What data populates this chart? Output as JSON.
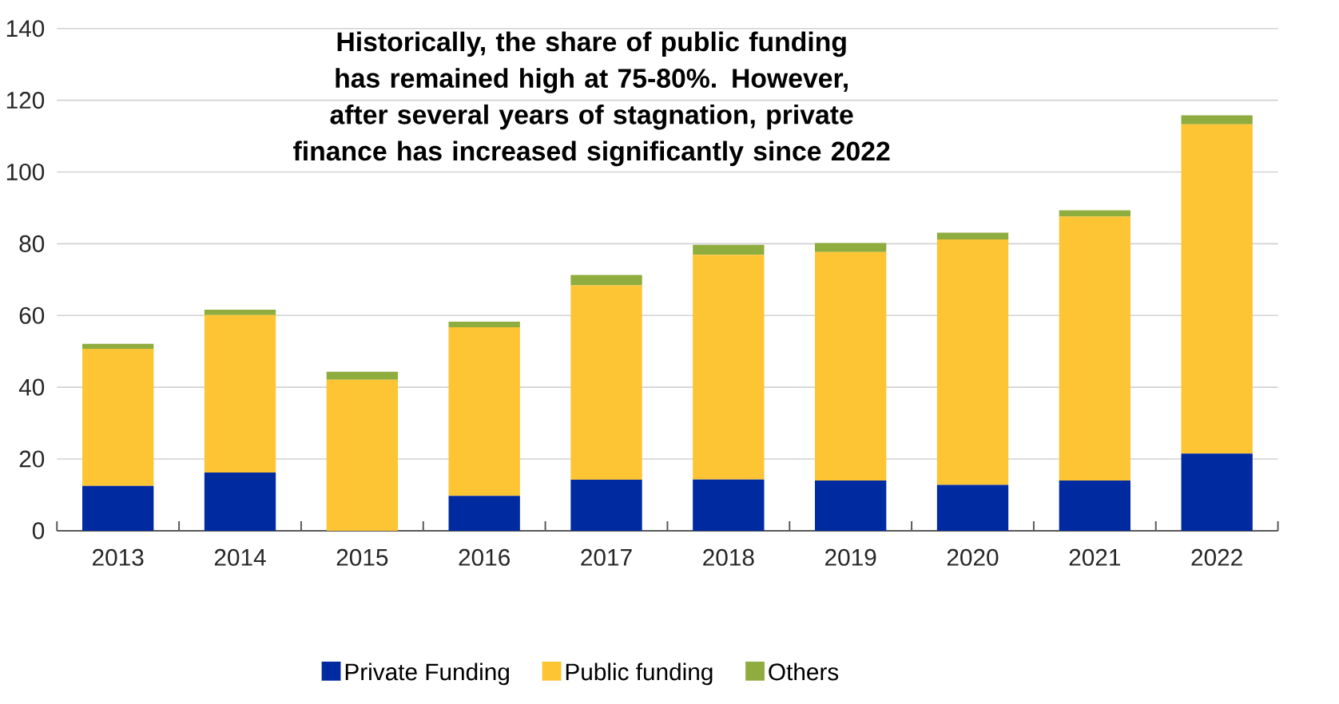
{
  "chart_data": {
    "type": "bar",
    "stacked": true,
    "title": "Historically, the share of public funding has remained high at 75-80%. However, after several years of stagnation, private finance has increased significantly since 2022",
    "categories": [
      "2013",
      "2014",
      "2015",
      "2016",
      "2017",
      "2018",
      "2019",
      "2020",
      "2021",
      "2022"
    ],
    "series": [
      {
        "name": "Private Funding",
        "color": "#002aa0",
        "values": [
          12.5,
          16.2,
          0,
          9.7,
          14.2,
          14.3,
          14.0,
          12.8,
          14.0,
          21.5
        ]
      },
      {
        "name": "Public funding",
        "color": "#fdc433",
        "values": [
          38.2,
          43.9,
          42.1,
          47.0,
          54.2,
          62.6,
          63.7,
          68.4,
          73.6,
          91.8
        ]
      },
      {
        "name": "Others",
        "color": "#8fac3f",
        "values": [
          1.4,
          1.5,
          2.2,
          1.6,
          2.9,
          2.8,
          2.5,
          1.9,
          1.7,
          2.5
        ]
      }
    ],
    "ylim": [
      0,
      140
    ],
    "yticks": [
      0,
      20,
      40,
      60,
      80,
      100,
      120,
      140
    ],
    "grid": "y",
    "legend": "bottom"
  }
}
